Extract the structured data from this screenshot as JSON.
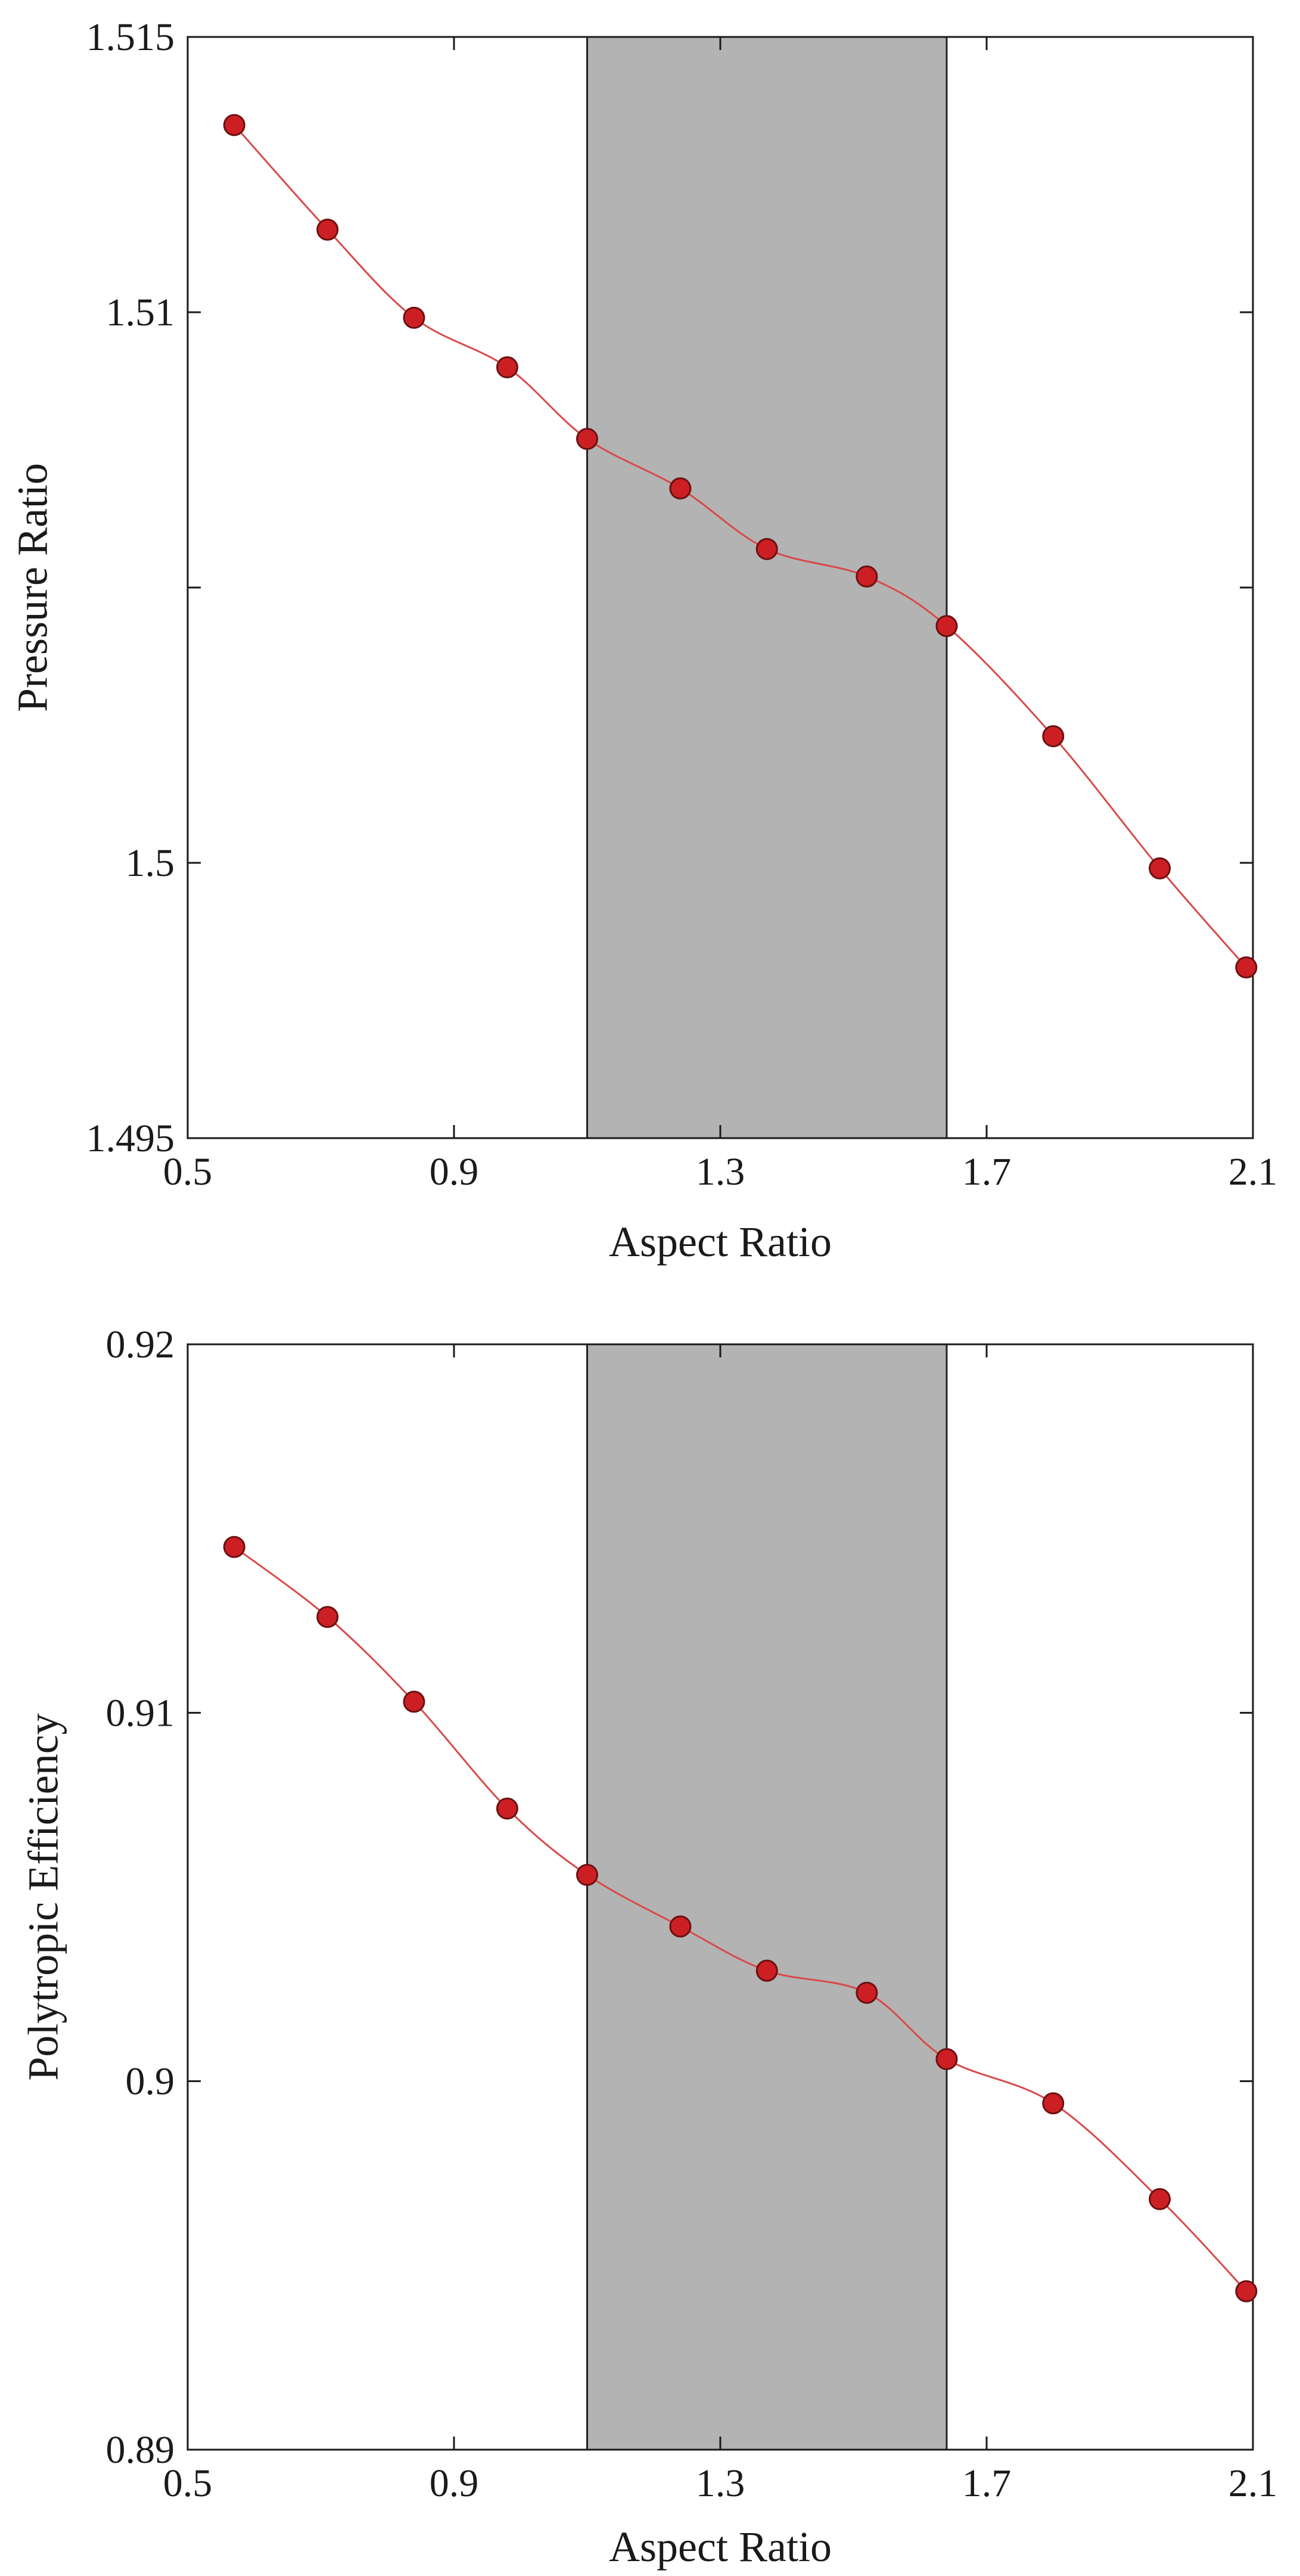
{
  "colors": {
    "line": "#d94a4a",
    "marker_fill": "#cc1f24",
    "marker_stroke": "#6b1010",
    "band_fill": "#b3b3b3",
    "band_stroke": "#222222",
    "axis": "#1a1a1a"
  },
  "chart_data": [
    {
      "type": "line",
      "xlabel": "Aspect Ratio",
      "ylabel": "Pressure Ratio",
      "xlim": [
        0.5,
        2.1
      ],
      "ylim": [
        1.495,
        1.515
      ],
      "xticks": [
        0.5,
        0.9,
        1.3,
        1.7,
        2.1
      ],
      "xtick_labels": [
        "0.5",
        "0.9",
        "1.3",
        "1.7",
        "2.1"
      ],
      "yticks": [
        1.495,
        1.5,
        1.505,
        1.51,
        1.515
      ],
      "ytick_labels": [
        "1.495",
        "1.5",
        "",
        "1.51",
        "1.515"
      ],
      "shaded_region": [
        1.1,
        1.64
      ],
      "grid": false,
      "series": [
        {
          "x": [
            0.57,
            0.71,
            0.84,
            0.98,
            1.1,
            1.24,
            1.37,
            1.52,
            1.64,
            1.8,
            1.96,
            2.09
          ],
          "y": [
            1.5134,
            1.5115,
            1.5099,
            1.509,
            1.5077,
            1.5068,
            1.5057,
            1.5052,
            1.5043,
            1.5023,
            1.4999,
            1.4981
          ]
        }
      ]
    },
    {
      "type": "line",
      "xlabel": "Aspect Ratio",
      "ylabel": "Polytropic Efficiency",
      "xlim": [
        0.5,
        2.1
      ],
      "ylim": [
        0.89,
        0.92
      ],
      "xticks": [
        0.5,
        0.9,
        1.3,
        1.7,
        2.1
      ],
      "xtick_labels": [
        "0.5",
        "0.9",
        "1.3",
        "1.7",
        "2.1"
      ],
      "yticks": [
        0.89,
        0.9,
        0.91,
        0.92
      ],
      "ytick_labels": [
        "0.89",
        "0.9",
        "0.91",
        "0.92"
      ],
      "shaded_region": [
        1.1,
        1.64
      ],
      "grid": false,
      "series": [
        {
          "x": [
            0.57,
            0.71,
            0.84,
            0.98,
            1.1,
            1.24,
            1.37,
            1.52,
            1.64,
            1.8,
            1.96,
            2.09
          ],
          "y": [
            0.9145,
            0.9126,
            0.9103,
            0.9074,
            0.9056,
            0.9042,
            0.903,
            0.9024,
            0.9006,
            0.8994,
            0.8968,
            0.8943
          ]
        }
      ]
    }
  ]
}
